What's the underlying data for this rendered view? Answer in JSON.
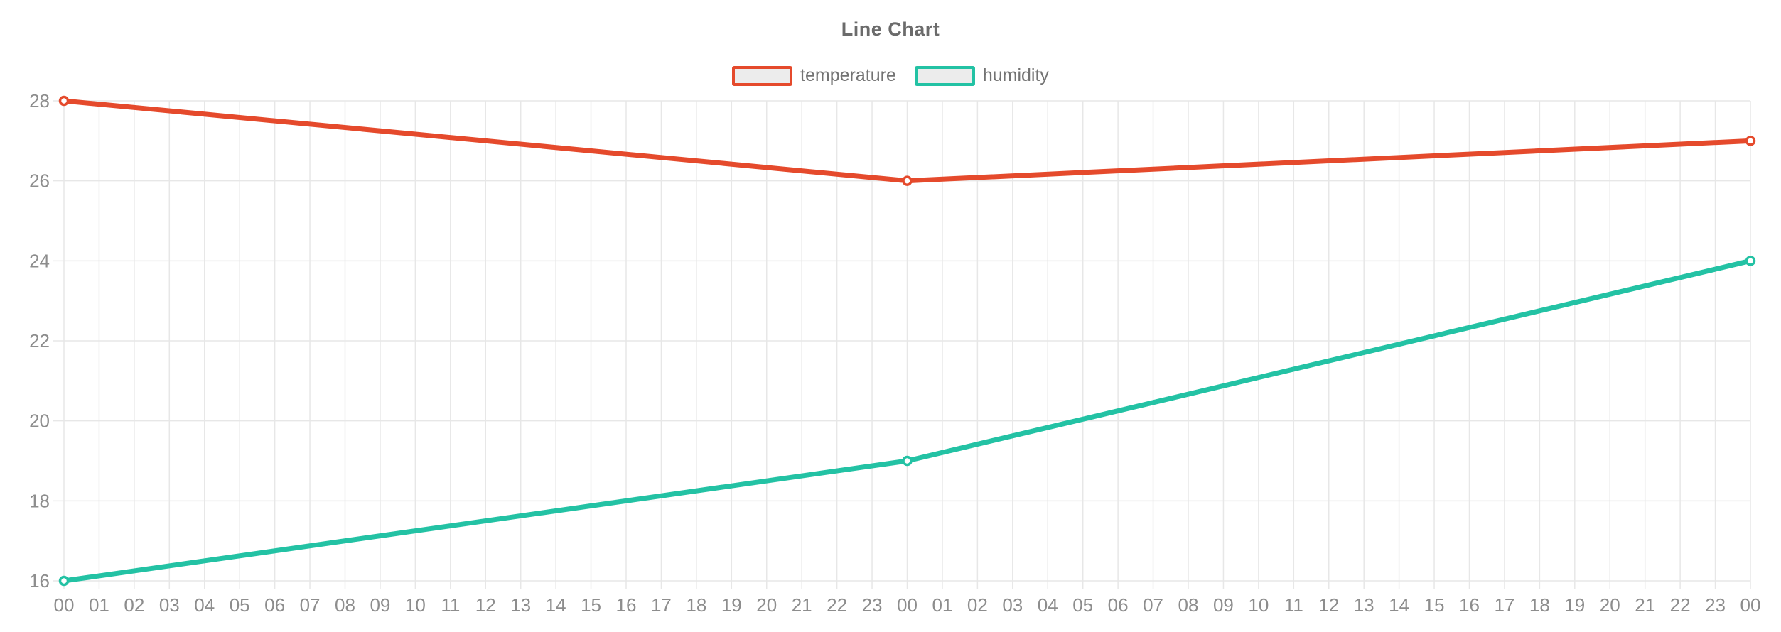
{
  "chart_data": {
    "type": "line",
    "title": "Line Chart",
    "x_labels": [
      "00",
      "01",
      "02",
      "03",
      "04",
      "05",
      "06",
      "07",
      "08",
      "09",
      "10",
      "11",
      "12",
      "13",
      "14",
      "15",
      "16",
      "17",
      "18",
      "19",
      "20",
      "21",
      "22",
      "23",
      "00",
      "01",
      "02",
      "03",
      "04",
      "05",
      "06",
      "07",
      "08",
      "09",
      "10",
      "11",
      "12",
      "13",
      "14",
      "15",
      "16",
      "17",
      "18",
      "19",
      "20",
      "21",
      "22",
      "23",
      "00"
    ],
    "y_ticks": [
      16,
      18,
      20,
      22,
      24,
      26,
      28
    ],
    "ylim": [
      16,
      28
    ],
    "grid": true,
    "legend_position": "top",
    "series": [
      {
        "name": "temperature",
        "color": "#e54a2c",
        "points": [
          {
            "x_index": 0,
            "value": 28
          },
          {
            "x_index": 24,
            "value": 26
          },
          {
            "x_index": 48,
            "value": 27
          }
        ]
      },
      {
        "name": "humidity",
        "color": "#23c2a4",
        "points": [
          {
            "x_index": 0,
            "value": 16
          },
          {
            "x_index": 24,
            "value": 19
          },
          {
            "x_index": 48,
            "value": 24
          }
        ]
      }
    ],
    "colors": {
      "background": "#ffffff",
      "grid_line": "#e7e7e7",
      "tick_label": "#8d8d8d",
      "title_text": "#6b6b6b",
      "legend_label": "#737373",
      "legend_box_fill": "#ececec",
      "marker_fill": "#ffffff"
    }
  }
}
